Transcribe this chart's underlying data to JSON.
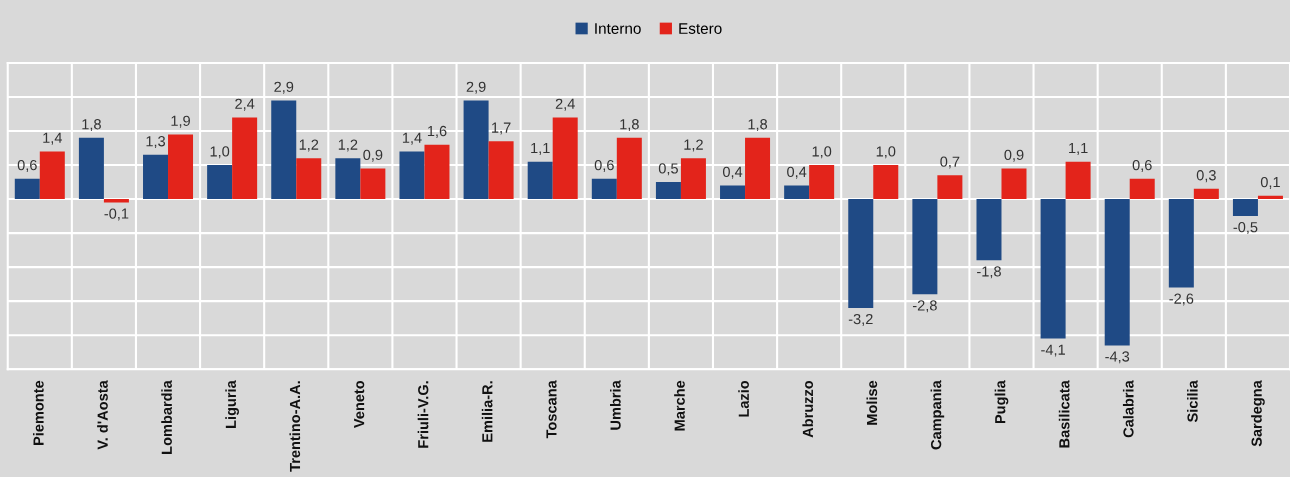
{
  "chart_data": {
    "type": "bar",
    "categories": [
      "Piemonte",
      "V. d'Aosta",
      "Lombardia",
      "Liguria",
      "Trentino-A.A.",
      "Veneto",
      "Friuli-V.G.",
      "Emilia-R.",
      "Toscana",
      "Umbria",
      "Marche",
      "Lazio",
      "Abruzzo",
      "Molise",
      "Campania",
      "Puglia",
      "Basilicata",
      "Calabria",
      "Sicilia",
      "Sardegna"
    ],
    "series": [
      {
        "name": "Interno",
        "color": "#1f4a85",
        "values": [
          0.6,
          1.8,
          1.3,
          1.0,
          2.9,
          1.2,
          1.4,
          2.9,
          1.1,
          0.6,
          0.5,
          0.4,
          0.4,
          -3.2,
          -2.8,
          -1.8,
          -4.1,
          -4.3,
          -2.6,
          -0.5
        ],
        "value_labels": [
          "0,6",
          "1,8",
          "1,3",
          "1,0",
          "2,9",
          "1,2",
          "1,4",
          "2,9",
          "1,1",
          "0,6",
          "0,5",
          "0,4",
          "0,4",
          "-3,2",
          "-2,8",
          "-1,8",
          "-4,1",
          "-4,3",
          "-2,6",
          "-0,5"
        ]
      },
      {
        "name": "Estero",
        "color": "#e3241b",
        "values": [
          1.4,
          -0.1,
          1.9,
          2.4,
          1.2,
          0.9,
          1.6,
          1.7,
          2.4,
          1.8,
          1.2,
          1.8,
          1.0,
          1.0,
          0.7,
          0.9,
          1.1,
          0.6,
          0.3,
          0.1
        ],
        "value_labels": [
          "1,4",
          "-0,1",
          "1,9",
          "2,4",
          "1,2",
          "0,9",
          "1,6",
          "1,7",
          "2,4",
          "1,8",
          "1,2",
          "1,8",
          "1,0",
          "1,0",
          "0,7",
          "0,9",
          "1,1",
          "0,6",
          "0,3",
          "0,1"
        ]
      }
    ],
    "ylim": [
      -5,
      4
    ],
    "yticks": [
      {
        "value": -5,
        "label": null
      },
      {
        "value": -4,
        "label": null
      },
      {
        "value": -3,
        "label": null
      },
      {
        "value": -2,
        "label": null
      },
      {
        "value": -1,
        "label": null
      },
      {
        "value": 0,
        "label": null
      },
      {
        "value": 1,
        "label": null
      },
      {
        "value": 2,
        "label": null
      },
      {
        "value": 3,
        "label": null
      },
      {
        "value": 4,
        "label": null
      }
    ],
    "tick_labels": "x",
    "grid": true,
    "legend": "top"
  }
}
